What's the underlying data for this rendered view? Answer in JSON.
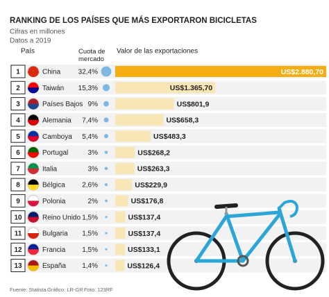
{
  "chart_data": {
    "type": "bar",
    "title": "RANKING DE LOS PAÍSES QUE MÁS EXPORTARON BICICLETAS",
    "subtitle": [
      "Cifras en millones",
      "Datos a 2019"
    ],
    "headers": {
      "country": "País",
      "share": "Cuota de mercado",
      "exports": "Valor de las exportaciones"
    },
    "ranks": [
      1,
      2,
      3,
      4,
      5,
      6,
      7,
      8,
      9,
      10,
      11,
      12,
      13
    ],
    "categories": [
      "China",
      "Taiwán",
      "Países Bajos",
      "Alemania",
      "Camboya",
      "Portugal",
      "Italia",
      "Bélgica",
      "Polonia",
      "Reino Unido",
      "Bulgaria",
      "Francia",
      "España"
    ],
    "share": {
      "color": "#7db7e2",
      "values": [
        32.4,
        15.3,
        9,
        7.4,
        5.4,
        3,
        3,
        2.6,
        2,
        1.5,
        1.5,
        1.5,
        1.4
      ],
      "value_labels": [
        "32,4%",
        "15,3%",
        "9%",
        "7,4%",
        "5,4%",
        "3%",
        "3%",
        "2,6%",
        "2%",
        "1,5%",
        "1,5%",
        "1,5%",
        "1,4%"
      ]
    },
    "exports": {
      "color": "#f8e6b6",
      "highlight_color": "#f4ae13",
      "values": [
        2880.7,
        1365.7,
        801.9,
        658.3,
        483.3,
        268.2,
        263.3,
        229.9,
        176.8,
        137.4,
        137.4,
        133.1,
        126.4
      ],
      "value_labels": [
        "US$2.880,70",
        "US$1.365,70",
        "US$801,9",
        "US$658,3",
        "US$483,3",
        "US$268,2",
        "US$263,3",
        "US$229,9",
        "US$176,8",
        "US$137,4",
        "US$137,4",
        "US$133,1",
        "US$126,4"
      ]
    },
    "footer": [
      "Fuente: Statista",
      "Gráfico: LR-GR",
      "Foto: 123RF"
    ]
  }
}
